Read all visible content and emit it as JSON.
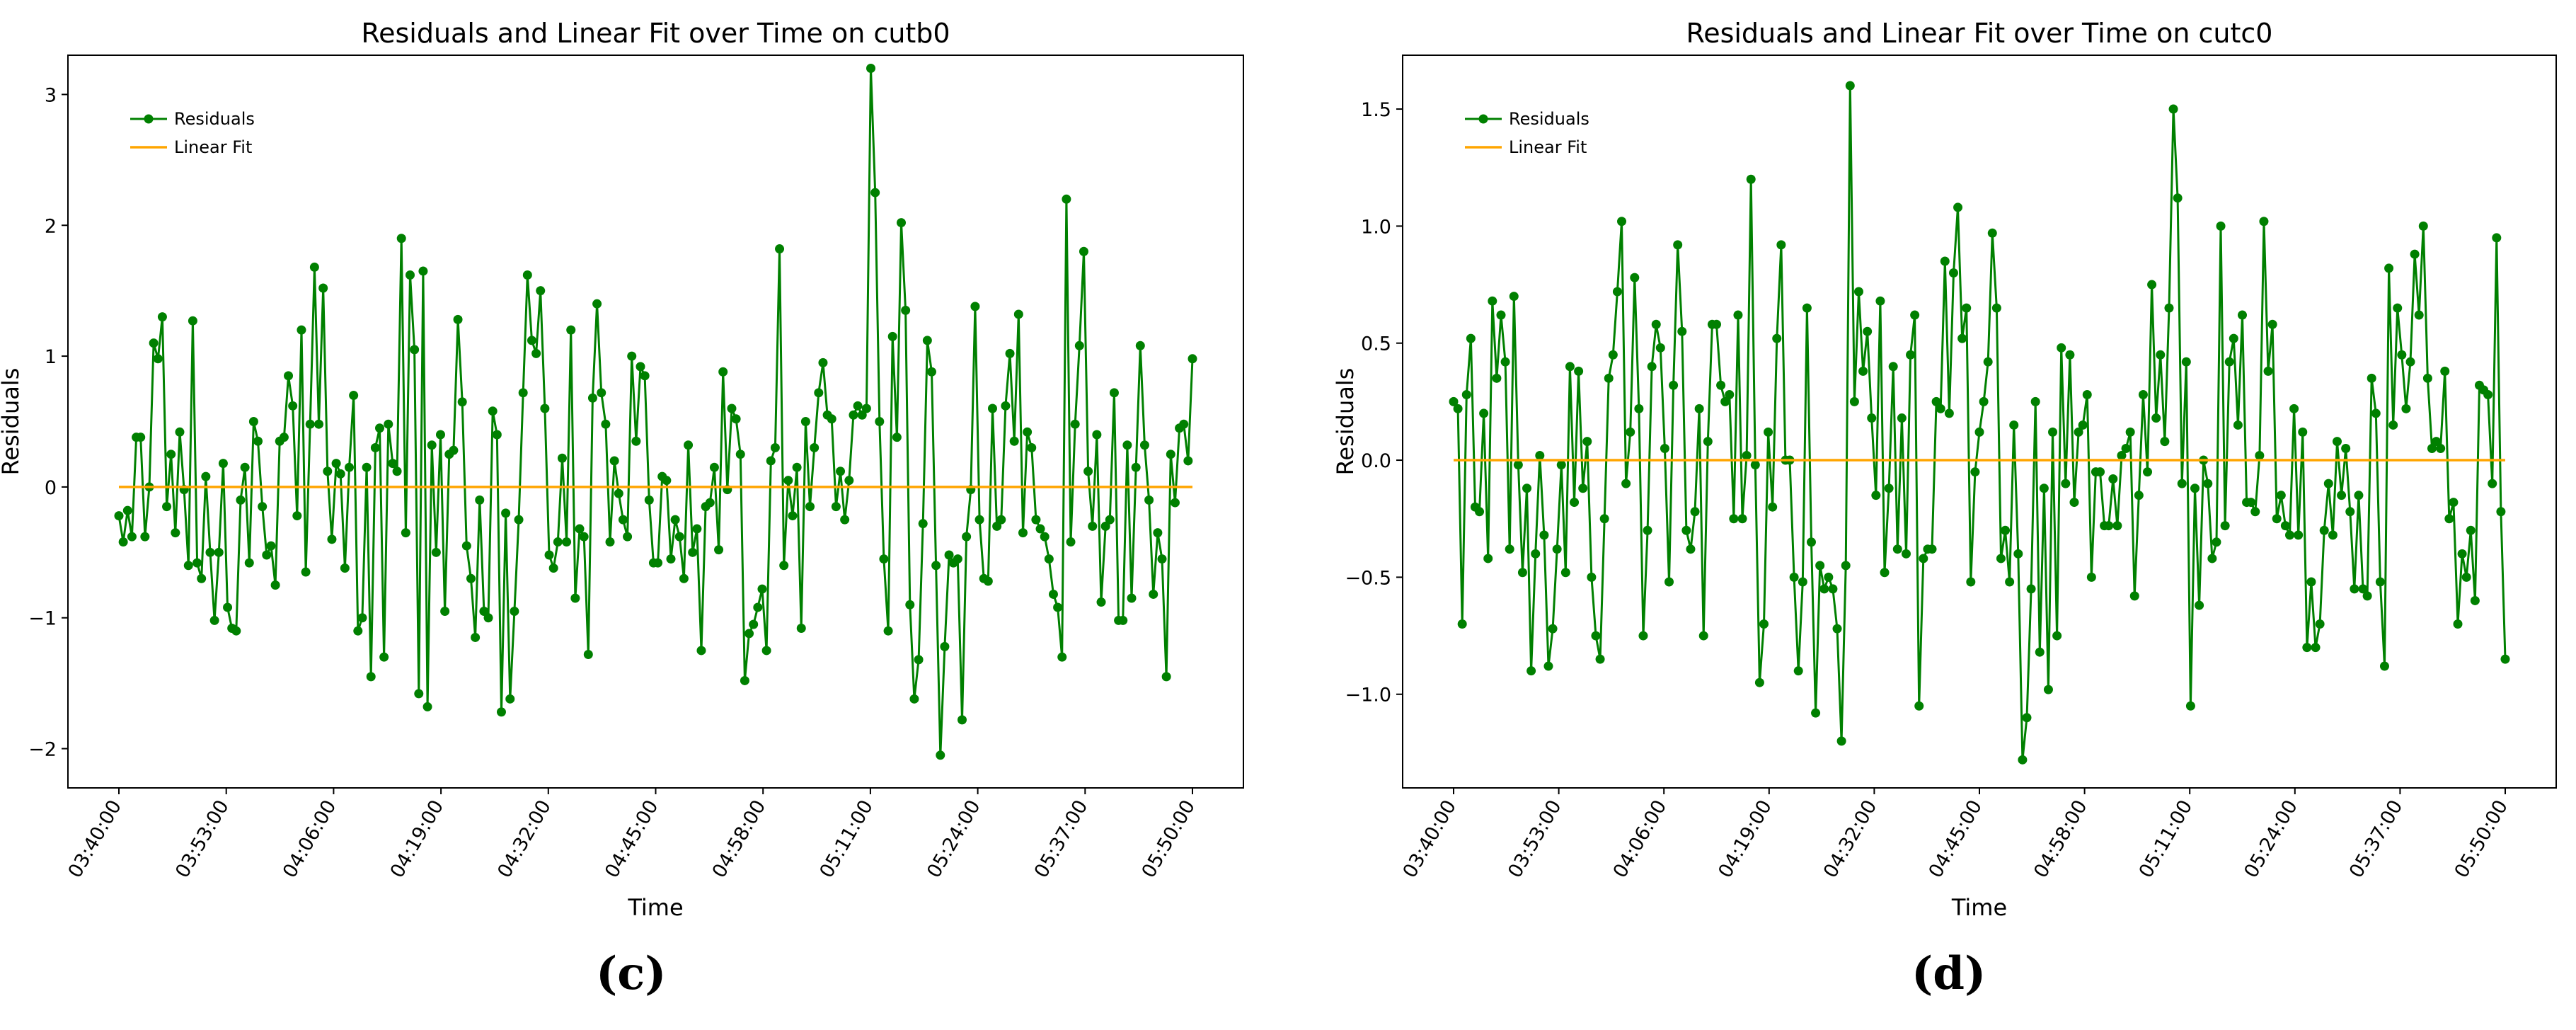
{
  "panels": [
    {
      "label": "(c)",
      "chart_data": {
        "type": "line",
        "title": "Residuals and Linear Fit over Time on cutb0",
        "xlabel": "Time",
        "ylabel": "Residuals",
        "x_range": [
          "03:40:00",
          "05:50:00"
        ],
        "x_ticks": [
          "03:40:00",
          "03:53:00",
          "04:06:00",
          "04:19:00",
          "04:32:00",
          "04:45:00",
          "04:58:00",
          "05:11:00",
          "05:24:00",
          "05:37:00",
          "05:50:00"
        ],
        "y_ticks": [
          -2,
          -1,
          0,
          1,
          2,
          3
        ],
        "ylim": [
          -2.3,
          3.3
        ],
        "grid": false,
        "legend_position": "top-left",
        "series": [
          {
            "name": "Residuals",
            "color": "#008000",
            "marker": "circle",
            "values": [
              -0.22,
              -0.42,
              -0.18,
              -0.38,
              0.38,
              0.38,
              -0.38,
              0.0,
              1.1,
              0.98,
              1.3,
              -0.15,
              0.25,
              -0.35,
              0.42,
              -0.02,
              -0.6,
              1.27,
              -0.58,
              -0.7,
              0.08,
              -0.5,
              -1.02,
              -0.5,
              0.18,
              -0.92,
              -1.08,
              -1.1,
              -0.1,
              0.15,
              -0.58,
              0.5,
              0.35,
              -0.15,
              -0.52,
              -0.45,
              -0.75,
              0.35,
              0.38,
              0.85,
              0.62,
              -0.22,
              1.2,
              -0.65,
              0.48,
              1.68,
              0.48,
              1.52,
              0.12,
              -0.4,
              0.18,
              0.1,
              -0.62,
              0.15,
              0.7,
              -1.1,
              -1.0,
              0.15,
              -1.45,
              0.3,
              0.45,
              -1.3,
              0.48,
              0.18,
              0.12,
              1.9,
              -0.35,
              1.62,
              1.05,
              -1.58,
              1.65,
              -1.68,
              0.32,
              -0.5,
              0.4,
              -0.95,
              0.25,
              0.28,
              1.28,
              0.65,
              -0.45,
              -0.7,
              -1.15,
              -0.1,
              -0.95,
              -1.0,
              0.58,
              0.4,
              -1.72,
              -0.2,
              -1.62,
              -0.95,
              -0.25,
              0.72,
              1.62,
              1.12,
              1.02,
              1.5,
              0.6,
              -0.52,
              -0.62,
              -0.42,
              0.22,
              -0.42,
              1.2,
              -0.85,
              -0.32,
              -0.38,
              -1.28,
              0.68,
              1.4,
              0.72,
              0.48,
              -0.42,
              0.2,
              -0.05,
              -0.25,
              -0.38,
              1.0,
              0.35,
              0.92,
              0.85,
              -0.1,
              -0.58,
              -0.58,
              0.08,
              0.05,
              -0.55,
              -0.25,
              -0.38,
              -0.7,
              0.32,
              -0.5,
              -0.32,
              -1.25,
              -0.15,
              -0.12,
              0.15,
              -0.48,
              0.88,
              -0.02,
              0.6,
              0.52,
              0.25,
              -1.48,
              -1.12,
              -1.05,
              -0.92,
              -0.78,
              -1.25,
              0.2,
              0.3,
              1.82,
              -0.6,
              0.05,
              -0.22,
              0.15,
              -1.08,
              0.5,
              -0.15,
              0.3,
              0.72,
              0.95,
              0.55,
              0.52,
              -0.15,
              0.12,
              -0.25,
              0.05,
              0.55,
              0.62,
              0.55,
              0.6,
              3.2,
              2.25,
              0.5,
              -0.55,
              -1.1,
              1.15,
              0.38,
              2.02,
              1.35,
              -0.9,
              -1.62,
              -1.32,
              -0.28,
              1.12,
              0.88,
              -0.6,
              -2.05,
              -1.22,
              -0.52,
              -0.58,
              -0.55,
              -1.78,
              -0.38,
              -0.02,
              1.38,
              -0.25,
              -0.7,
              -0.72,
              0.6,
              -0.3,
              -0.25,
              0.62,
              1.02,
              0.35,
              1.32,
              -0.35,
              0.42,
              0.3,
              -0.25,
              -0.32,
              -0.38,
              -0.55,
              -0.82,
              -0.92,
              -1.3,
              2.2,
              -0.42,
              0.48,
              1.08,
              1.8,
              0.12,
              -0.3,
              0.4,
              -0.88,
              -0.3,
              -0.25,
              0.72,
              -1.02,
              -1.02,
              0.32,
              -0.85,
              0.15,
              1.08,
              0.32,
              -0.1,
              -0.82,
              -0.35,
              -0.55,
              -1.45,
              0.25,
              -0.12,
              0.45,
              0.48,
              0.2,
              0.98
            ]
          },
          {
            "name": "Linear Fit",
            "color": "#ffa500",
            "endpoints": [
              0.0,
              0.0
            ]
          }
        ]
      }
    },
    {
      "label": "(d)",
      "chart_data": {
        "type": "line",
        "title": "Residuals and Linear Fit over Time on cutc0",
        "xlabel": "Time",
        "ylabel": "Residuals",
        "x_range": [
          "03:40:00",
          "05:50:00"
        ],
        "x_ticks": [
          "03:40:00",
          "03:53:00",
          "04:06:00",
          "04:19:00",
          "04:32:00",
          "04:45:00",
          "04:58:00",
          "05:11:00",
          "05:24:00",
          "05:37:00",
          "05:50:00"
        ],
        "y_ticks": [
          -1.0,
          -0.5,
          0.0,
          0.5,
          1.0,
          1.5
        ],
        "y_tick_labels": [
          "−1.0",
          "−0.5",
          "0.0",
          "0.5",
          "1.0",
          "1.5"
        ],
        "ylim": [
          -1.4,
          1.73
        ],
        "grid": false,
        "legend_position": "top-left",
        "series": [
          {
            "name": "Residuals",
            "color": "#008000",
            "marker": "circle",
            "values": [
              0.25,
              0.22,
              -0.7,
              0.28,
              0.52,
              -0.2,
              -0.22,
              0.2,
              -0.42,
              0.68,
              0.35,
              0.62,
              0.42,
              -0.38,
              0.7,
              -0.02,
              -0.48,
              -0.12,
              -0.9,
              -0.4,
              0.02,
              -0.32,
              -0.88,
              -0.72,
              -0.38,
              -0.02,
              -0.48,
              0.4,
              -0.18,
              0.38,
              -0.12,
              0.08,
              -0.5,
              -0.75,
              -0.85,
              -0.25,
              0.35,
              0.45,
              0.72,
              1.02,
              -0.1,
              0.12,
              0.78,
              0.22,
              -0.75,
              -0.3,
              0.4,
              0.58,
              0.48,
              0.05,
              -0.52,
              0.32,
              0.92,
              0.55,
              -0.3,
              -0.38,
              -0.22,
              0.22,
              -0.75,
              0.08,
              0.58,
              0.58,
              0.32,
              0.25,
              0.28,
              -0.25,
              0.62,
              -0.25,
              0.02,
              1.2,
              -0.02,
              -0.95,
              -0.7,
              0.12,
              -0.2,
              0.52,
              0.92,
              0.0,
              0.0,
              -0.5,
              -0.9,
              -0.52,
              0.65,
              -0.35,
              -1.08,
              -0.45,
              -0.55,
              -0.5,
              -0.55,
              -0.72,
              -1.2,
              -0.45,
              1.6,
              0.25,
              0.72,
              0.38,
              0.55,
              0.18,
              -0.15,
              0.68,
              -0.48,
              -0.12,
              0.4,
              -0.38,
              0.18,
              -0.4,
              0.45,
              0.62,
              -1.05,
              -0.42,
              -0.38,
              -0.38,
              0.25,
              0.22,
              0.85,
              0.2,
              0.8,
              1.08,
              0.52,
              0.65,
              -0.52,
              -0.05,
              0.12,
              0.25,
              0.42,
              0.97,
              0.65,
              -0.42,
              -0.3,
              -0.52,
              0.15,
              -0.4,
              -1.28,
              -1.1,
              -0.55,
              0.25,
              -0.82,
              -0.12,
              -0.98,
              0.12,
              -0.75,
              0.48,
              -0.1,
              0.45,
              -0.18,
              0.12,
              0.15,
              0.28,
              -0.5,
              -0.05,
              -0.05,
              -0.28,
              -0.28,
              -0.08,
              -0.28,
              0.02,
              0.05,
              0.12,
              -0.58,
              -0.15,
              0.28,
              -0.05,
              0.75,
              0.18,
              0.45,
              0.08,
              0.65,
              1.5,
              1.12,
              -0.1,
              0.42,
              -1.05,
              -0.12,
              -0.62,
              0.0,
              -0.1,
              -0.42,
              -0.35,
              1.0,
              -0.28,
              0.42,
              0.52,
              0.15,
              0.62,
              -0.18,
              -0.18,
              -0.22,
              0.02,
              1.02,
              0.38,
              0.58,
              -0.25,
              -0.15,
              -0.28,
              -0.32,
              0.22,
              -0.32,
              0.12,
              -0.8,
              -0.52,
              -0.8,
              -0.7,
              -0.3,
              -0.1,
              -0.32,
              0.08,
              -0.15,
              0.05,
              -0.22,
              -0.55,
              -0.15,
              -0.55,
              -0.58,
              0.35,
              0.2,
              -0.52,
              -0.88,
              0.82,
              0.15,
              0.65,
              0.45,
              0.22,
              0.42,
              0.88,
              0.62,
              1.0,
              0.35,
              0.05,
              0.08,
              0.05,
              0.38,
              -0.25,
              -0.18,
              -0.7,
              -0.4,
              -0.5,
              -0.3,
              -0.6,
              0.32,
              0.3,
              0.28,
              -0.1,
              0.95,
              -0.22,
              -0.85
            ]
          },
          {
            "name": "Linear Fit",
            "color": "#ffa500",
            "endpoints": [
              0.0,
              0.0
            ]
          }
        ]
      }
    }
  ]
}
